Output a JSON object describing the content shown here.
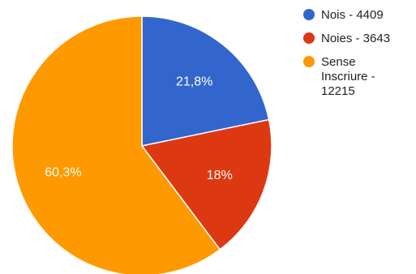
{
  "chart_data": {
    "type": "pie",
    "title": "",
    "slices": [
      {
        "name": "Nois - 4409",
        "value": 4409,
        "label": "21,8%",
        "color": "#3366cc"
      },
      {
        "name": "Noies - 3643",
        "value": 3643,
        "label": "18%",
        "color": "#dc3912"
      },
      {
        "name": "Sense Inscriure - 12215",
        "value": 12215,
        "label": "60,3%",
        "color": "#ff9900"
      }
    ],
    "legend": {
      "position": "right",
      "entries": [
        {
          "lines": [
            "Nois - 4409"
          ],
          "color": "#3366cc"
        },
        {
          "lines": [
            "Noies - 3643"
          ],
          "color": "#dc3912"
        },
        {
          "lines": [
            "Sense",
            "Inscriure -",
            "12215"
          ],
          "color": "#ff9900"
        }
      ]
    }
  }
}
